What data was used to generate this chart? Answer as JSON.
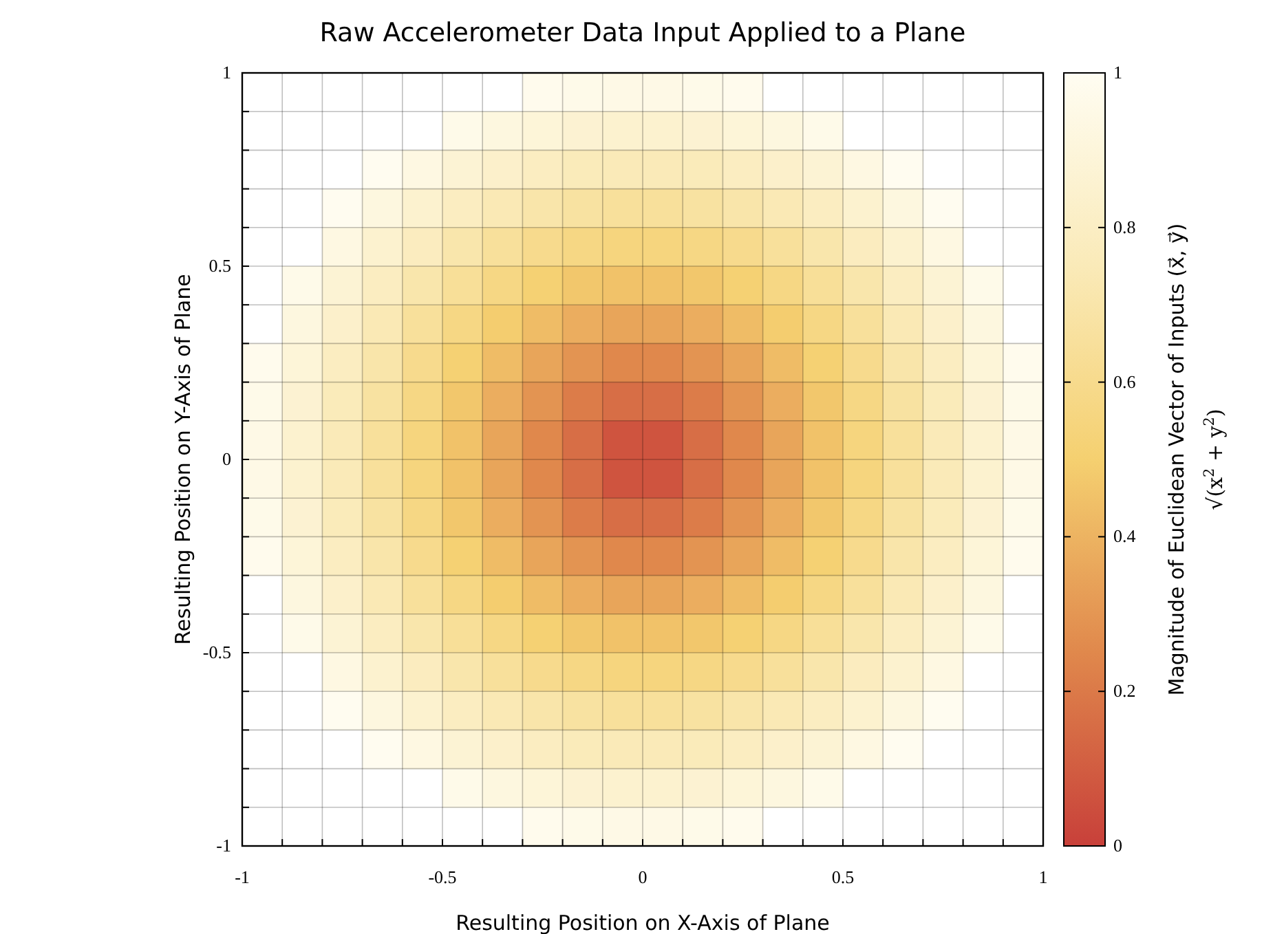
{
  "chart_data": {
    "type": "heatmap",
    "title": "Raw Accelerometer Data Input Applied to a Plane",
    "xlabel": "Resulting Position on X-Axis of Plane",
    "ylabel": "Resulting Position on Y-Axis of Plane",
    "clabel": "Magnitude of Euclidean Vector of Inputs (x⃗, y⃗)",
    "annotations": [
      "√(x$^{2}$ + y$^{2}$)"
    ],
    "xlim": [
      -1,
      1
    ],
    "ylim": [
      -1,
      1
    ],
    "xticks": [
      -1,
      {
        "value": -0.9,
        "label": null
      },
      {
        "value": -0.8,
        "label": null
      },
      {
        "value": -0.7,
        "label": null
      },
      {
        "value": -0.6,
        "label": null
      },
      -0.5,
      {
        "value": -0.4,
        "label": null
      },
      {
        "value": -0.3,
        "label": null
      },
      {
        "value": -0.2,
        "label": null
      },
      {
        "value": -0.1,
        "label": null
      },
      0,
      {
        "value": 0.1,
        "label": null
      },
      {
        "value": 0.2,
        "label": null
      },
      {
        "value": 0.3,
        "label": null
      },
      {
        "value": 0.4,
        "label": null
      },
      0.5,
      {
        "value": 0.6,
        "label": null
      },
      {
        "value": 0.7,
        "label": null
      },
      {
        "value": 0.8,
        "label": null
      },
      {
        "value": 0.9,
        "label": null
      },
      1
    ],
    "yticks": [
      -1,
      {
        "value": -0.9,
        "label": null
      },
      {
        "value": -0.8,
        "label": null
      },
      {
        "value": -0.7,
        "label": null
      },
      {
        "value": -0.6,
        "label": null
      },
      -0.5,
      {
        "value": -0.4,
        "label": null
      },
      {
        "value": -0.3,
        "label": null
      },
      {
        "value": -0.2,
        "label": null
      },
      {
        "value": -0.1,
        "label": null
      },
      0,
      {
        "value": 0.1,
        "label": null
      },
      {
        "value": 0.2,
        "label": null
      },
      {
        "value": 0.3,
        "label": null
      },
      {
        "value": 0.4,
        "label": null
      },
      0.5,
      {
        "value": 0.6,
        "label": null
      },
      {
        "value": 0.7,
        "label": null
      },
      {
        "value": 0.8,
        "label": null
      },
      {
        "value": 0.9,
        "label": null
      },
      1
    ],
    "grid": true,
    "clim": [
      0,
      1
    ],
    "cticks": [
      0,
      0.2,
      0.4,
      0.6,
      0.8,
      1
    ],
    "colors": [
      "#c8403a",
      "#e0884c",
      "#f5d070",
      "#faeab8",
      "#fffdf2"
    ],
    "cells": [
      [
        null,
        null,
        null,
        null,
        null,
        null,
        null,
        0.98,
        0.96,
        0.95,
        0.95,
        0.96,
        0.98,
        null,
        null,
        null,
        null,
        null,
        null,
        null
      ],
      [
        null,
        null,
        null,
        null,
        null,
        0.96,
        0.92,
        0.89,
        0.86,
        0.85,
        0.85,
        0.86,
        0.89,
        0.92,
        0.96,
        null,
        null,
        null,
        null,
        null
      ],
      [
        null,
        null,
        null,
        0.99,
        0.93,
        0.87,
        0.83,
        0.79,
        0.76,
        0.75,
        0.75,
        0.76,
        0.79,
        0.83,
        0.87,
        0.93,
        0.99,
        null,
        null,
        null
      ],
      [
        null,
        null,
        0.99,
        0.92,
        0.85,
        0.79,
        0.74,
        0.7,
        0.67,
        0.65,
        0.65,
        0.67,
        0.7,
        0.74,
        0.79,
        0.85,
        0.92,
        0.99,
        null,
        null
      ],
      [
        null,
        null,
        0.93,
        0.85,
        0.78,
        0.71,
        0.65,
        0.6,
        0.57,
        0.55,
        0.55,
        0.57,
        0.6,
        0.65,
        0.71,
        0.78,
        0.85,
        0.93,
        null,
        null
      ],
      [
        null,
        0.96,
        0.87,
        0.79,
        0.71,
        0.64,
        0.57,
        0.51,
        0.47,
        0.45,
        0.45,
        0.47,
        0.51,
        0.57,
        0.64,
        0.71,
        0.79,
        0.87,
        0.96,
        null
      ],
      [
        null,
        0.92,
        0.83,
        0.74,
        0.65,
        0.57,
        0.49,
        0.43,
        0.38,
        0.35,
        0.35,
        0.38,
        0.43,
        0.49,
        0.57,
        0.65,
        0.74,
        0.83,
        0.92,
        null
      ],
      [
        0.98,
        0.89,
        0.79,
        0.7,
        0.6,
        0.51,
        0.43,
        0.35,
        0.29,
        0.25,
        0.25,
        0.29,
        0.35,
        0.43,
        0.51,
        0.6,
        0.7,
        0.79,
        0.89,
        0.98
      ],
      [
        0.96,
        0.86,
        0.76,
        0.67,
        0.57,
        0.47,
        0.38,
        0.29,
        0.21,
        0.16,
        0.16,
        0.21,
        0.29,
        0.38,
        0.47,
        0.57,
        0.67,
        0.76,
        0.86,
        0.96
      ],
      [
        0.95,
        0.85,
        0.75,
        0.65,
        0.55,
        0.45,
        0.35,
        0.25,
        0.16,
        0.07,
        0.07,
        0.16,
        0.25,
        0.35,
        0.45,
        0.55,
        0.65,
        0.75,
        0.85,
        0.95
      ],
      [
        0.95,
        0.85,
        0.75,
        0.65,
        0.55,
        0.45,
        0.35,
        0.25,
        0.16,
        0.07,
        0.07,
        0.16,
        0.25,
        0.35,
        0.45,
        0.55,
        0.65,
        0.75,
        0.85,
        0.95
      ],
      [
        0.96,
        0.86,
        0.76,
        0.67,
        0.57,
        0.47,
        0.38,
        0.29,
        0.21,
        0.16,
        0.16,
        0.21,
        0.29,
        0.38,
        0.47,
        0.57,
        0.67,
        0.76,
        0.86,
        0.96
      ],
      [
        0.98,
        0.89,
        0.79,
        0.7,
        0.6,
        0.51,
        0.43,
        0.35,
        0.29,
        0.25,
        0.25,
        0.29,
        0.35,
        0.43,
        0.51,
        0.6,
        0.7,
        0.79,
        0.89,
        0.98
      ],
      [
        null,
        0.92,
        0.83,
        0.74,
        0.65,
        0.57,
        0.49,
        0.43,
        0.38,
        0.35,
        0.35,
        0.38,
        0.43,
        0.49,
        0.57,
        0.65,
        0.74,
        0.83,
        0.92,
        null
      ],
      [
        null,
        0.96,
        0.87,
        0.79,
        0.71,
        0.64,
        0.57,
        0.51,
        0.47,
        0.45,
        0.45,
        0.47,
        0.51,
        0.57,
        0.64,
        0.71,
        0.79,
        0.87,
        0.96,
        null
      ],
      [
        null,
        null,
        0.93,
        0.85,
        0.78,
        0.71,
        0.65,
        0.6,
        0.57,
        0.55,
        0.55,
        0.57,
        0.6,
        0.65,
        0.71,
        0.78,
        0.85,
        0.93,
        null,
        null
      ],
      [
        null,
        null,
        0.99,
        0.92,
        0.85,
        0.79,
        0.74,
        0.7,
        0.67,
        0.65,
        0.65,
        0.67,
        0.7,
        0.74,
        0.79,
        0.85,
        0.92,
        0.99,
        null,
        null
      ],
      [
        null,
        null,
        null,
        0.99,
        0.93,
        0.87,
        0.83,
        0.79,
        0.76,
        0.75,
        0.75,
        0.76,
        0.79,
        0.83,
        0.87,
        0.93,
        0.99,
        null,
        null,
        null
      ],
      [
        null,
        null,
        null,
        null,
        null,
        0.96,
        0.92,
        0.89,
        0.86,
        0.85,
        0.85,
        0.86,
        0.89,
        0.92,
        0.96,
        null,
        null,
        null,
        null,
        null
      ],
      [
        null,
        null,
        null,
        null,
        null,
        null,
        null,
        0.98,
        0.96,
        0.95,
        0.95,
        0.96,
        0.98,
        null,
        null,
        null,
        null,
        null,
        null,
        null
      ]
    ]
  }
}
